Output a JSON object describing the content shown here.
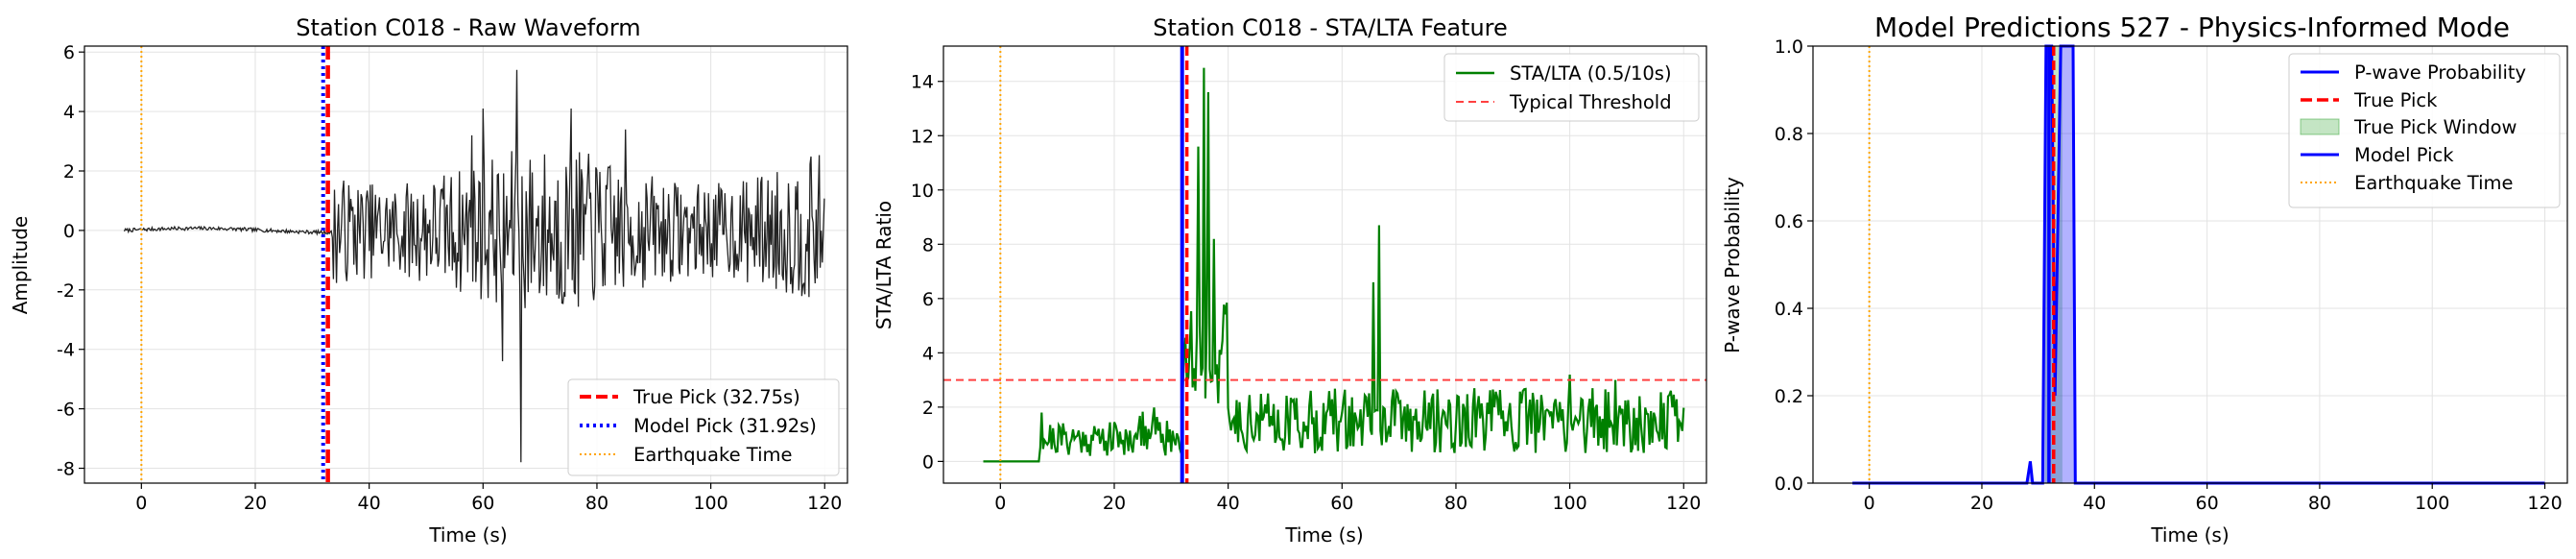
{
  "chart_data": [
    {
      "type": "line",
      "title": "Station C018 - Raw Waveform",
      "xlabel": "Time (s)",
      "ylabel": "Amplitude",
      "xlim": [
        -10,
        124
      ],
      "ylim": [
        -8.5,
        6.2
      ],
      "xticks": [
        0,
        20,
        40,
        60,
        80,
        100,
        120
      ],
      "yticks": [
        -8,
        -6,
        -4,
        -2,
        0,
        2,
        4,
        6
      ],
      "grid": true,
      "legend_position": "lower-right",
      "series": [
        {
          "name": "waveform",
          "color": "#222222",
          "x_range": [
            -3,
            120
          ],
          "pre_event_level": 0.1,
          "event_onset": 33.5,
          "peaks": [
            [
              66,
              5.4
            ],
            [
              66.6,
              -7.8
            ],
            [
              63.5,
              -4.4
            ],
            [
              60,
              4.1
            ],
            [
              75.5,
              4.1
            ],
            [
              85,
              3.4
            ],
            [
              58,
              3.2
            ]
          ]
        },
        {
          "name": "True Pick (32.75s)",
          "x": 32.75,
          "color": "#ff0000",
          "style": "dashed"
        },
        {
          "name": "Model Pick (31.92s)",
          "x": 31.92,
          "color": "#0000ff",
          "style": "dotted"
        },
        {
          "name": "Earthquake Time",
          "x": 0,
          "color": "#ffa500",
          "style": "dotted"
        }
      ],
      "legend": [
        "True Pick (32.75s)",
        "Model Pick (31.92s)",
        "Earthquake Time"
      ]
    },
    {
      "type": "line",
      "title": "Station C018 - STA/LTA Feature",
      "xlabel": "Time (s)",
      "ylabel": "STA/LTA Ratio",
      "xlim": [
        -10,
        124
      ],
      "ylim": [
        -0.8,
        15.3
      ],
      "xticks": [
        0,
        20,
        40,
        60,
        80,
        100,
        120
      ],
      "yticks": [
        0,
        2,
        4,
        6,
        8,
        10,
        12,
        14
      ],
      "grid": true,
      "legend_position": "top-right",
      "series": [
        {
          "name": "STA/LTA (0.5/10s)",
          "color": "#008000",
          "x_range": [
            -3,
            120
          ],
          "peaks": [
            [
              35.8,
              14.5
            ],
            [
              36.5,
              13.6
            ],
            [
              34.8,
              11.6
            ],
            [
              37.5,
              8.2
            ],
            [
              66.5,
              8.7
            ],
            [
              65.5,
              6.6
            ],
            [
              100,
              3.2
            ],
            [
              108,
              3.0
            ]
          ]
        },
        {
          "name": "Typical Threshold",
          "y": 3.0,
          "color": "#ff4040",
          "style": "dashed"
        },
        {
          "name": "Model Pick",
          "x": 31.92,
          "color": "#0000ff"
        },
        {
          "name": "True Pick",
          "x": 32.75,
          "color": "#ff0000",
          "style": "dashed"
        },
        {
          "name": "Earthquake Time",
          "x": 0,
          "color": "#ffa500",
          "style": "dotted"
        }
      ],
      "legend": [
        "STA/LTA (0.5/10s)",
        "Typical Threshold"
      ]
    },
    {
      "type": "line",
      "title": "Model Predictions 527 - Physics-Informed Mode",
      "xlabel": "Time (s)",
      "ylabel": "P-wave Probability",
      "xlim": [
        -10,
        124
      ],
      "ylim": [
        0.0,
        1.0
      ],
      "xticks": [
        0,
        20,
        40,
        60,
        80,
        100,
        120
      ],
      "yticks": [
        0.0,
        0.2,
        0.4,
        0.6,
        0.8,
        1.0
      ],
      "grid": true,
      "legend_position": "top-right",
      "series": [
        {
          "name": "P-wave Probability",
          "color": "#0000ff",
          "x": [
            -3,
            28,
            28.6,
            29,
            29.6,
            30,
            30.8,
            31.4,
            32.4,
            33,
            34,
            35,
            35.6,
            36.2,
            36.6,
            37,
            120
          ],
          "y": [
            0,
            0,
            0.05,
            0.0,
            0.0,
            0.0,
            0.0,
            1.0,
            1.0,
            0.2,
            1.0,
            1.0,
            1.0,
            1.0,
            0.0,
            0.0,
            0.0
          ]
        },
        {
          "name": "True Pick",
          "x": 32.75,
          "color": "#ff0000",
          "style": "dashed"
        },
        {
          "name": "True Pick Window",
          "x_range": [
            31.2,
            34.3
          ],
          "color": "#2ca02c"
        },
        {
          "name": "Model Pick",
          "x": 31.92,
          "color": "#0000ff"
        },
        {
          "name": "Earthquake Time",
          "x": 0,
          "color": "#ffa500",
          "style": "dotted"
        }
      ],
      "legend": [
        "P-wave Probability",
        "True Pick",
        "True Pick Window",
        "Model Pick",
        "Earthquake Time"
      ]
    }
  ]
}
